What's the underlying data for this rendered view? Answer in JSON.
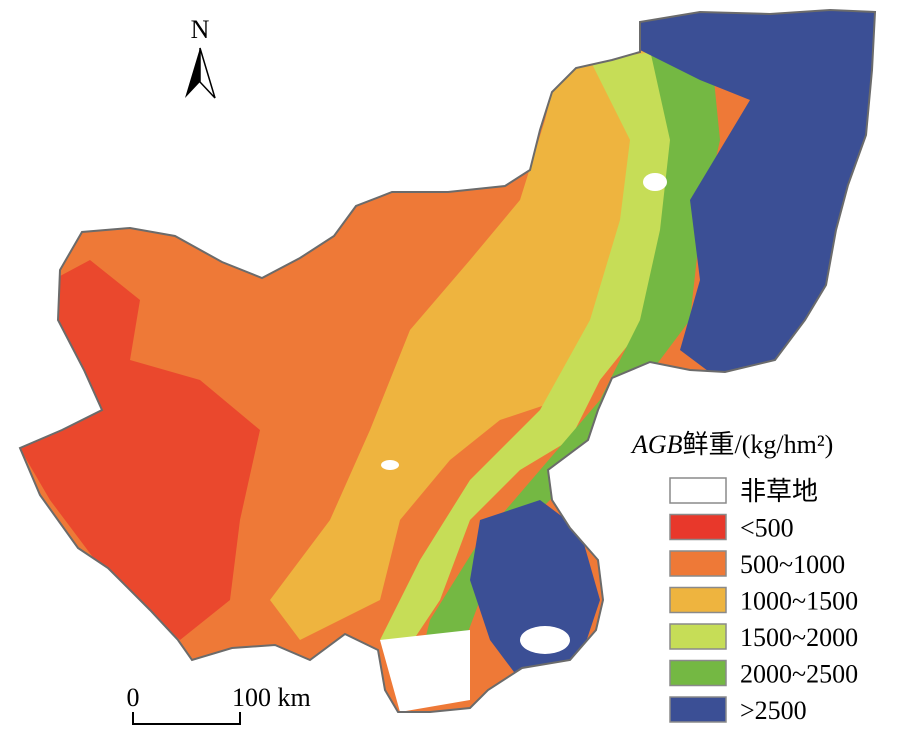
{
  "north_label": "N",
  "legend": {
    "title_italic": "AGB",
    "title_rest": "鲜重/(kg/hm²)",
    "items": [
      {
        "label": "非草地",
        "color": "#ffffff"
      },
      {
        "label": "<500",
        "color": "#e8382b"
      },
      {
        "label": "500~1000",
        "color": "#ee7937"
      },
      {
        "label": "1000~1500",
        "color": "#eeb43f"
      },
      {
        "label": "1500~2000",
        "color": "#c6dd57"
      },
      {
        "label": "2000~2500",
        "color": "#74b843"
      },
      {
        "label": ">2500",
        "color": "#3b4f95"
      }
    ]
  },
  "scale_bar": {
    "start_label": "0",
    "end_label": "100 km"
  }
}
